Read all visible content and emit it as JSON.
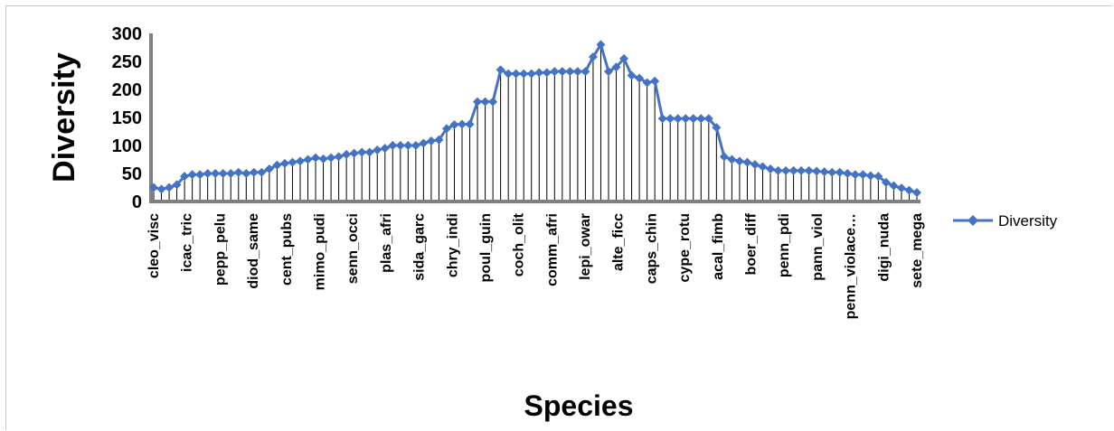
{
  "chart_data": {
    "type": "line",
    "ylabel": "Diversity",
    "xlabel": "Species",
    "ylim": [
      0,
      300
    ],
    "y_ticks": [
      0,
      50,
      100,
      150,
      200,
      250,
      300
    ],
    "grid": "vertical drop lines",
    "legend": {
      "position": "right",
      "entries": [
        "Diversity"
      ]
    },
    "series_color": "#4472c4",
    "x_labels_shown": [
      "cleo_visc",
      "icac_tric",
      "pepp_pelu",
      "diod_same",
      "cent_pubs",
      "mimo_pudi",
      "senn_occi",
      "plas_afri",
      "sida_garc",
      "chry_indi",
      "poul_guin",
      "coch_olit",
      "comm_afri",
      "lepi_owar",
      "alte_ficc",
      "caps_chin",
      "cype_rotu",
      "acal_fimb",
      "boer_diff",
      "penn_pdi",
      "pann_viol",
      "penn_violace…",
      "digi_nuda",
      "sete_mega"
    ],
    "series": [
      {
        "name": "Diversity",
        "values": [
          25,
          22,
          25,
          30,
          45,
          48,
          48,
          50,
          50,
          50,
          50,
          52,
          50,
          52,
          52,
          58,
          65,
          68,
          70,
          72,
          75,
          78,
          76,
          78,
          80,
          84,
          86,
          88,
          88,
          92,
          95,
          100,
          100,
          100,
          100,
          104,
          108,
          110,
          130,
          137,
          138,
          138,
          178,
          178,
          178,
          235,
          228,
          228,
          228,
          228,
          230,
          230,
          232,
          232,
          232,
          232,
          232,
          258,
          280,
          232,
          240,
          255,
          225,
          220,
          212,
          215,
          148,
          148,
          148,
          148,
          148,
          148,
          148,
          132,
          80,
          75,
          72,
          70,
          66,
          62,
          58,
          55,
          55,
          55,
          55,
          55,
          54,
          53,
          52,
          52,
          50,
          48,
          48,
          46,
          45,
          34,
          28,
          24,
          20,
          16
        ]
      }
    ]
  }
}
